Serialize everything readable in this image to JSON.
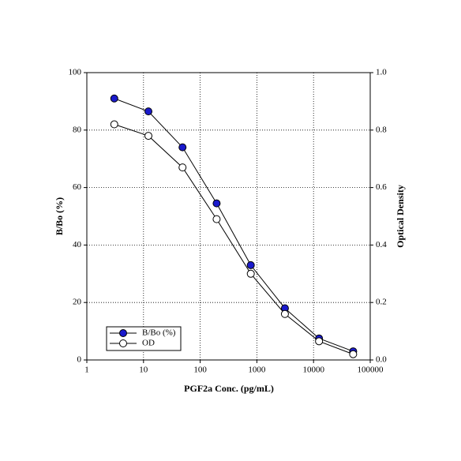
{
  "chart_data": {
    "type": "line",
    "xlabel": "PGF2a Conc. (pg/mL)",
    "ylabel": "B/Bo (%)",
    "y2label": "Optical Density",
    "xscale": "log",
    "x": [
      3.05,
      12.2,
      48.8,
      195,
      781,
      3125,
      12500,
      50000
    ],
    "series": [
      {
        "name": "B/Bo (%)",
        "color": "#1a1acc",
        "marker": "filled",
        "values": [
          91,
          86.5,
          74,
          54.5,
          33,
          18,
          7.5,
          3
        ]
      },
      {
        "name": "OD",
        "color": "#ffffff",
        "marker": "open",
        "axis": "y2",
        "values": [
          0.82,
          0.78,
          0.67,
          0.49,
          0.3,
          0.16,
          0.065,
          0.02
        ]
      }
    ],
    "xlim": [
      1,
      100000
    ],
    "xticks": [
      1,
      10,
      100,
      1000,
      10000,
      100000
    ],
    "ylim": [
      0,
      100
    ],
    "yticks": [
      0,
      20,
      40,
      60,
      80,
      100
    ],
    "y2lim": [
      0,
      1
    ],
    "y2ticks": [
      {
        "value": 0,
        "label": "0.0"
      },
      0.2,
      0.4,
      0.6,
      0.8,
      {
        "value": 1,
        "label": "1.0"
      }
    ],
    "grid": true,
    "legend": "lower left"
  }
}
